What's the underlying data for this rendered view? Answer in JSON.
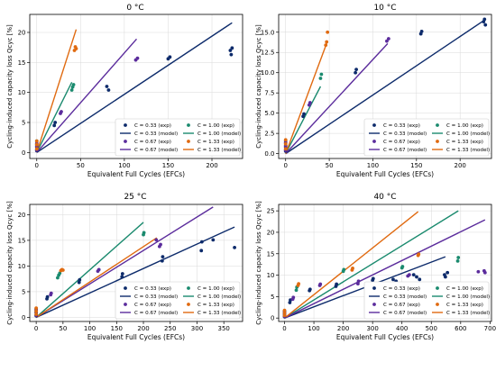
{
  "colors": {
    "c033": "#0d2b6b",
    "c067": "#5b2c9c",
    "c100": "#1a8a6e",
    "c133": "#e06a10"
  },
  "chart_data": [
    {
      "type": "scatter",
      "title": "0 °C",
      "xlabel": "Equivalent Full Cycles (EFCs)",
      "ylabel": "Cycling-induced capacity loss Qcyc [%]",
      "xlim": [
        -8,
        235
      ],
      "ylim": [
        -1,
        23
      ],
      "xticks": [
        0,
        50,
        100,
        150,
        200
      ],
      "yticks": [
        0,
        5,
        10,
        15,
        20
      ],
      "grid": true,
      "legend_placement": "bottom-right",
      "series": [
        {
          "name": "C = 0.33 (exp)",
          "kind": "exp",
          "color": "c033",
          "points": [
            [
              0,
              0.3
            ],
            [
              0,
              0.9
            ],
            [
              0,
              1.4
            ],
            [
              20,
              4.5
            ],
            [
              21,
              5.0
            ],
            [
              80,
              11.0
            ],
            [
              82,
              10.4
            ],
            [
              150,
              15.6
            ],
            [
              152,
              15.9
            ],
            [
              221,
              17.0
            ],
            [
              222,
              16.3
            ],
            [
              223,
              17.4
            ]
          ]
        },
        {
          "name": "C = 1.00 (exp)",
          "kind": "exp",
          "color": "c100",
          "points": [
            [
              0,
              0.5
            ],
            [
              0,
              1.2
            ],
            [
              0,
              1.9
            ],
            [
              40,
              10.4
            ],
            [
              41,
              10.9
            ],
            [
              42,
              11.3
            ]
          ]
        },
        {
          "name": "C = 0.67 (exp)",
          "kind": "exp",
          "color": "c067",
          "points": [
            [
              0,
              0.4
            ],
            [
              0,
              1.0
            ],
            [
              0,
              1.5
            ],
            [
              27,
              6.5
            ],
            [
              28,
              6.8
            ],
            [
              113,
              15.4
            ],
            [
              115,
              15.7
            ]
          ]
        },
        {
          "name": "C = 1.33 (exp)",
          "kind": "exp",
          "color": "c133",
          "points": [
            [
              0,
              0.6
            ],
            [
              0,
              1.3
            ],
            [
              0,
              1.9
            ],
            [
              43,
              17.0
            ],
            [
              44,
              17.6
            ],
            [
              45,
              17.3
            ]
          ]
        },
        {
          "name": "C = 0.33 (model)",
          "kind": "model",
          "color": "c033",
          "line": [
            [
              0,
              0
            ],
            [
              223,
              21.6
            ]
          ]
        },
        {
          "name": "C = 1.00 (model)",
          "kind": "model",
          "color": "c100",
          "line": [
            [
              0,
              0
            ],
            [
              40,
              11.7
            ]
          ]
        },
        {
          "name": "C = 0.67 (model)",
          "kind": "model",
          "color": "c067",
          "line": [
            [
              0,
              0
            ],
            [
              114,
              18.9
            ]
          ]
        },
        {
          "name": "C = 1.33 (model)",
          "kind": "model",
          "color": "c133",
          "line": [
            [
              0,
              0
            ],
            [
              45,
              20.5
            ]
          ]
        }
      ]
    },
    {
      "type": "scatter",
      "title": "10 °C",
      "xlabel": "Equivalent Full Cycles (EFCs)",
      "ylabel": "Cycling-induced capacity loss Qcyc [%]",
      "xlim": [
        -8,
        236
      ],
      "ylim": [
        -0.6,
        17.2
      ],
      "xticks": [
        0,
        50,
        100,
        150,
        200
      ],
      "yticks": [
        0,
        2.5,
        5,
        7.5,
        10,
        12.5,
        15
      ],
      "ytick_labels": [
        "0.0",
        "2.5",
        "5.0",
        "7.5",
        "10.0",
        "12.5",
        "15.0"
      ],
      "grid": true,
      "legend_placement": "bottom-right",
      "series": [
        {
          "name": "C = 0.33 (exp)",
          "kind": "exp",
          "color": "c033",
          "points": [
            [
              0,
              0.3
            ],
            [
              0,
              0.8
            ],
            [
              0,
              1.3
            ],
            [
              20,
              4.6
            ],
            [
              21,
              4.9
            ],
            [
              80,
              10.0
            ],
            [
              81,
              10.4
            ],
            [
              155,
              14.8
            ],
            [
              156,
              15.1
            ],
            [
              227,
              16.3
            ],
            [
              228,
              16.6
            ],
            [
              229,
              15.9
            ]
          ]
        },
        {
          "name": "C = 1.00 (exp)",
          "kind": "exp",
          "color": "c100",
          "points": [
            [
              0,
              0.5
            ],
            [
              0,
              1.0
            ],
            [
              0,
              1.6
            ],
            [
              40,
              9.3
            ],
            [
              41,
              9.8
            ]
          ]
        },
        {
          "name": "C = 0.67 (exp)",
          "kind": "exp",
          "color": "c067",
          "points": [
            [
              0,
              0.4
            ],
            [
              0,
              0.9
            ],
            [
              0,
              1.4
            ],
            [
              27,
              6.0
            ],
            [
              28,
              6.3
            ],
            [
              116,
              13.9
            ],
            [
              118,
              14.2
            ]
          ]
        },
        {
          "name": "C = 1.33 (exp)",
          "kind": "exp",
          "color": "c133",
          "points": [
            [
              0,
              0.6
            ],
            [
              0,
              1.2
            ],
            [
              0,
              1.7
            ],
            [
              46,
              13.4
            ],
            [
              47,
              13.8
            ],
            [
              48,
              15.0
            ]
          ]
        },
        {
          "name": "C = 0.33 (model)",
          "kind": "model",
          "color": "c033",
          "line": [
            [
              0,
              0
            ],
            [
              228,
              16.5
            ]
          ]
        },
        {
          "name": "C = 1.00 (model)",
          "kind": "model",
          "color": "c100",
          "line": [
            [
              0,
              0
            ],
            [
              40,
              8.3
            ]
          ]
        },
        {
          "name": "C = 0.67 (model)",
          "kind": "model",
          "color": "c067",
          "line": [
            [
              0,
              0
            ],
            [
              117,
              13.6
            ]
          ]
        },
        {
          "name": "C = 1.33 (model)",
          "kind": "model",
          "color": "c133",
          "line": [
            [
              0,
              0
            ],
            [
              48,
              13.9
            ]
          ]
        }
      ]
    },
    {
      "type": "scatter",
      "title": "25 °C",
      "xlabel": "Equivalent Full Cycles (EFCs)",
      "ylabel": "Cycling-induced capacity loss Qcyc [%]",
      "xlim": [
        -12,
        385
      ],
      "ylim": [
        -0.8,
        22
      ],
      "xticks": [
        0,
        50,
        100,
        150,
        200,
        250,
        300,
        350
      ],
      "yticks": [
        0,
        5,
        10,
        15,
        20
      ],
      "grid": true,
      "legend_placement": "bottom-right",
      "series": [
        {
          "name": "C = 0.33 (exp)",
          "kind": "exp",
          "color": "c033",
          "points": [
            [
              0,
              0.3
            ],
            [
              0,
              0.9
            ],
            [
              0,
              1.4
            ],
            [
              20,
              3.6
            ],
            [
              21,
              4.0
            ],
            [
              80,
              6.8
            ],
            [
              81,
              7.3
            ],
            [
              160,
              7.9
            ],
            [
              161,
              8.5
            ],
            [
              235,
              11.0
            ],
            [
              236,
              11.8
            ],
            [
              308,
              13.0
            ],
            [
              309,
              14.7
            ],
            [
              330,
              15.1
            ],
            [
              370,
              13.6
            ]
          ]
        },
        {
          "name": "C = 1.00 (exp)",
          "kind": "exp",
          "color": "c100",
          "points": [
            [
              0,
              0.5
            ],
            [
              0,
              1.1
            ],
            [
              0,
              1.7
            ],
            [
              40,
              7.7
            ],
            [
              42,
              8.2
            ],
            [
              44,
              8.6
            ],
            [
              200,
              16.1
            ],
            [
              201,
              16.5
            ]
          ]
        },
        {
          "name": "C = 0.67 (exp)",
          "kind": "exp",
          "color": "c067",
          "points": [
            [
              0,
              0.4
            ],
            [
              0,
              1.0
            ],
            [
              0,
              1.5
            ],
            [
              27,
              4.4
            ],
            [
              28,
              4.7
            ],
            [
              115,
              9.0
            ],
            [
              117,
              9.3
            ],
            [
              230,
              13.8
            ],
            [
              232,
              14.2
            ],
            [
              224,
              15.1
            ]
          ]
        },
        {
          "name": "C = 1.33 (exp)",
          "kind": "exp",
          "color": "c133",
          "points": [
            [
              0,
              0.6
            ],
            [
              0,
              1.2
            ],
            [
              0,
              1.8
            ],
            [
              46,
              9.1
            ],
            [
              48,
              9.3
            ],
            [
              50,
              9.2
            ]
          ]
        },
        {
          "name": "C = 0.33 (model)",
          "kind": "model",
          "color": "c033",
          "line": [
            [
              0,
              0
            ],
            [
              370,
              17.6
            ]
          ]
        },
        {
          "name": "C = 1.00 (model)",
          "kind": "model",
          "color": "c100",
          "line": [
            [
              0,
              0
            ],
            [
              200,
              18.5
            ]
          ]
        },
        {
          "name": "C = 0.67 (model)",
          "kind": "model",
          "color": "c067",
          "line": [
            [
              0,
              0
            ],
            [
              330,
              21.5
            ]
          ]
        },
        {
          "name": "C = 1.33 (model)",
          "kind": "model",
          "color": "c133",
          "line": [
            [
              0,
              0
            ],
            [
              225,
              15.5
            ]
          ]
        }
      ]
    },
    {
      "type": "scatter",
      "title": "40 °C",
      "xlabel": "Equivalent Full Cycles (EFCs)",
      "ylabel": "Cycling-induced capacity loss Qcyc [%]",
      "xlim": [
        -20,
        705
      ],
      "ylim": [
        -0.8,
        26.5
      ],
      "xticks": [
        0,
        100,
        200,
        300,
        400,
        500,
        600,
        700
      ],
      "yticks": [
        0,
        5,
        10,
        15,
        20,
        25
      ],
      "grid": true,
      "legend_placement": "bottom-right",
      "series": [
        {
          "name": "C = 0.33 (exp)",
          "kind": "exp",
          "color": "c033",
          "points": [
            [
              0,
              0.3
            ],
            [
              0,
              0.9
            ],
            [
              0,
              1.4
            ],
            [
              18,
              3.6
            ],
            [
              20,
              4.2
            ],
            [
              85,
              6.4
            ],
            [
              87,
              6.7
            ],
            [
              175,
              7.4
            ],
            [
              177,
              7.9
            ],
            [
              300,
              8.8
            ],
            [
              302,
              9.2
            ],
            [
              370,
              9.0
            ],
            [
              380,
              8.6
            ],
            [
              440,
              10.1
            ],
            [
              450,
              9.6
            ],
            [
              460,
              9.0
            ],
            [
              545,
              10.1
            ],
            [
              548,
              9.6
            ],
            [
              555,
              10.6
            ]
          ]
        },
        {
          "name": "C = 1.00 (exp)",
          "kind": "exp",
          "color": "c100",
          "points": [
            [
              0,
              0.5
            ],
            [
              0,
              1.1
            ],
            [
              0,
              1.7
            ],
            [
              40,
              6.5
            ],
            [
              42,
              7.2
            ],
            [
              200,
              10.9
            ],
            [
              202,
              11.3
            ],
            [
              400,
              11.7
            ],
            [
              402,
              12.0
            ],
            [
              590,
              13.3
            ],
            [
              592,
              14.1
            ]
          ]
        },
        {
          "name": "C = 0.67 (exp)",
          "kind": "exp",
          "color": "c067",
          "points": [
            [
              0,
              0.4
            ],
            [
              0,
              1.0
            ],
            [
              0,
              1.5
            ],
            [
              28,
              4.4
            ],
            [
              30,
              4.8
            ],
            [
              120,
              7.6
            ],
            [
              122,
              7.9
            ],
            [
              250,
              8.0
            ],
            [
              252,
              8.6
            ],
            [
              420,
              9.8
            ],
            [
              425,
              10.1
            ],
            [
              660,
              10.8
            ],
            [
              680,
              11.0
            ],
            [
              683,
              10.6
            ]
          ]
        },
        {
          "name": "C = 1.33 (exp)",
          "kind": "exp",
          "color": "c133",
          "points": [
            [
              0,
              0.6
            ],
            [
              0,
              1.2
            ],
            [
              0,
              1.8
            ],
            [
              46,
              7.6
            ],
            [
              48,
              8.0
            ],
            [
              230,
              11.2
            ],
            [
              232,
              11.6
            ],
            [
              455,
              14.6
            ],
            [
              457,
              14.9
            ]
          ]
        },
        {
          "name": "C = 0.33 (model)",
          "kind": "model",
          "color": "c033",
          "line": [
            [
              0,
              0
            ],
            [
              548,
              14.3
            ]
          ]
        },
        {
          "name": "C = 1.00 (model)",
          "kind": "model",
          "color": "c100",
          "line": [
            [
              0,
              0
            ],
            [
              592,
              25.0
            ]
          ]
        },
        {
          "name": "C = 0.67 (model)",
          "kind": "model",
          "color": "c067",
          "line": [
            [
              0,
              0
            ],
            [
              683,
              22.9
            ]
          ]
        },
        {
          "name": "C = 1.33 (model)",
          "kind": "model",
          "color": "c133",
          "line": [
            [
              0,
              0
            ],
            [
              455,
              24.8
            ]
          ]
        }
      ]
    }
  ]
}
